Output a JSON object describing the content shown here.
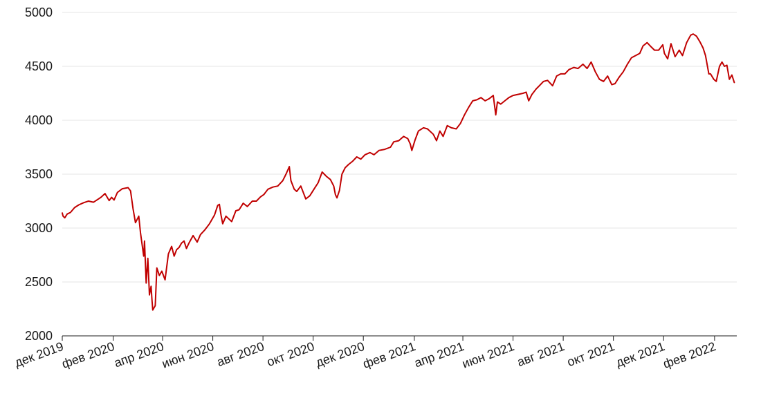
{
  "chart_data": {
    "type": "line",
    "title": "",
    "xlabel": "",
    "ylabel": "",
    "ylim": [
      2000,
      5000
    ],
    "y_ticks": [
      2000,
      2500,
      3000,
      3500,
      4000,
      4500,
      5000
    ],
    "x_range": [
      "2019-12-01",
      "2022-02-28"
    ],
    "x_ticks": [
      {
        "date": "2019-12-01",
        "label": "дек 2019"
      },
      {
        "date": "2020-02-01",
        "label": "фев 2020"
      },
      {
        "date": "2020-04-01",
        "label": "апр 2020"
      },
      {
        "date": "2020-06-01",
        "label": "июн 2020"
      },
      {
        "date": "2020-08-01",
        "label": "авг 2020"
      },
      {
        "date": "2020-10-01",
        "label": "окт 2020"
      },
      {
        "date": "2020-12-01",
        "label": "дек 2020"
      },
      {
        "date": "2021-02-01",
        "label": "фев 2021"
      },
      {
        "date": "2021-04-01",
        "label": "апр 2021"
      },
      {
        "date": "2021-06-01",
        "label": "июн 2021"
      },
      {
        "date": "2021-08-01",
        "label": "авг 2021"
      },
      {
        "date": "2021-10-01",
        "label": "окт 2021"
      },
      {
        "date": "2021-12-01",
        "label": "дек 2021"
      },
      {
        "date": "2022-02-01",
        "label": "фев 2022"
      }
    ],
    "grid": true,
    "legend": "none",
    "series": [
      {
        "color": "#c00000",
        "x": [
          "2019-12-01",
          "2019-12-02",
          "2019-12-04",
          "2019-12-07",
          "2019-12-11",
          "2019-12-16",
          "2019-12-21",
          "2019-12-27",
          "2020-01-02",
          "2020-01-08",
          "2020-01-13",
          "2020-01-17",
          "2020-01-22",
          "2020-01-27",
          "2020-01-30",
          "2020-02-02",
          "2020-02-06",
          "2020-02-12",
          "2020-02-19",
          "2020-02-22",
          "2020-02-25",
          "2020-02-28",
          "2020-03-03",
          "2020-03-05",
          "2020-03-09",
          "2020-03-10",
          "2020-03-12",
          "2020-03-14",
          "2020-03-16",
          "2020-03-18",
          "2020-03-19",
          "2020-03-20",
          "2020-03-23",
          "2020-03-25",
          "2020-03-28",
          "2020-03-31",
          "2020-04-04",
          "2020-04-08",
          "2020-04-12",
          "2020-04-15",
          "2020-04-18",
          "2020-04-21",
          "2020-04-24",
          "2020-04-27",
          "2020-04-30",
          "2020-05-03",
          "2020-05-08",
          "2020-05-13",
          "2020-05-17",
          "2020-05-22",
          "2020-05-28",
          "2020-06-03",
          "2020-06-07",
          "2020-06-09",
          "2020-06-11",
          "2020-06-13",
          "2020-06-17",
          "2020-06-24",
          "2020-06-29",
          "2020-07-03",
          "2020-07-08",
          "2020-07-13",
          "2020-07-19",
          "2020-07-24",
          "2020-07-29",
          "2020-08-02",
          "2020-08-07",
          "2020-08-13",
          "2020-08-19",
          "2020-08-25",
          "2020-08-29",
          "2020-09-02",
          "2020-09-04",
          "2020-09-08",
          "2020-09-11",
          "2020-09-16",
          "2020-09-22",
          "2020-09-27",
          "2020-10-02",
          "2020-10-07",
          "2020-10-12",
          "2020-10-17",
          "2020-10-22",
          "2020-10-26",
          "2020-10-28",
          "2020-10-30",
          "2020-11-02",
          "2020-11-05",
          "2020-11-09",
          "2020-11-13",
          "2020-11-18",
          "2020-11-23",
          "2020-11-28",
          "2020-12-03",
          "2020-12-09",
          "2020-12-14",
          "2020-12-20",
          "2020-12-27",
          "2021-01-03",
          "2021-01-07",
          "2021-01-13",
          "2021-01-19",
          "2021-01-24",
          "2021-01-27",
          "2021-01-29",
          "2021-02-02",
          "2021-02-06",
          "2021-02-12",
          "2021-02-17",
          "2021-02-24",
          "2021-02-28",
          "2021-03-04",
          "2021-03-08",
          "2021-03-13",
          "2021-03-18",
          "2021-03-24",
          "2021-03-29",
          "2021-04-03",
          "2021-04-08",
          "2021-04-13",
          "2021-04-18",
          "2021-04-23",
          "2021-04-28",
          "2021-05-03",
          "2021-05-08",
          "2021-05-11",
          "2021-05-13",
          "2021-05-17",
          "2021-05-22",
          "2021-05-27",
          "2021-06-01",
          "2021-06-07",
          "2021-06-13",
          "2021-06-17",
          "2021-06-20",
          "2021-06-24",
          "2021-06-29",
          "2021-07-03",
          "2021-07-08",
          "2021-07-13",
          "2021-07-19",
          "2021-07-24",
          "2021-07-29",
          "2021-08-03",
          "2021-08-08",
          "2021-08-14",
          "2021-08-19",
          "2021-08-25",
          "2021-08-30",
          "2021-09-04",
          "2021-09-09",
          "2021-09-14",
          "2021-09-19",
          "2021-09-24",
          "2021-09-29",
          "2021-10-03",
          "2021-10-08",
          "2021-10-13",
          "2021-10-18",
          "2021-10-23",
          "2021-10-28",
          "2021-11-02",
          "2021-11-06",
          "2021-11-11",
          "2021-11-16",
          "2021-11-20",
          "2021-11-25",
          "2021-11-30",
          "2021-12-02",
          "2021-12-06",
          "2021-12-10",
          "2021-12-15",
          "2021-12-20",
          "2021-12-24",
          "2021-12-29",
          "2022-01-03",
          "2022-01-06",
          "2022-01-10",
          "2022-01-14",
          "2022-01-18",
          "2022-01-21",
          "2022-01-25",
          "2022-01-27",
          "2022-01-31",
          "2022-02-03",
          "2022-02-07",
          "2022-02-10",
          "2022-02-13",
          "2022-02-16",
          "2022-02-19",
          "2022-02-22",
          "2022-02-25"
        ],
        "y": [
          3140,
          3110,
          3095,
          3130,
          3145,
          3190,
          3215,
          3235,
          3250,
          3240,
          3265,
          3285,
          3320,
          3255,
          3285,
          3260,
          3330,
          3365,
          3375,
          3345,
          3180,
          3050,
          3110,
          2960,
          2740,
          2880,
          2490,
          2720,
          2380,
          2460,
          2340,
          2240,
          2280,
          2630,
          2560,
          2600,
          2520,
          2760,
          2830,
          2740,
          2800,
          2820,
          2860,
          2880,
          2810,
          2860,
          2930,
          2870,
          2940,
          2980,
          3040,
          3120,
          3210,
          3220,
          3120,
          3040,
          3110,
          3060,
          3160,
          3170,
          3230,
          3200,
          3250,
          3250,
          3290,
          3310,
          3360,
          3380,
          3390,
          3440,
          3500,
          3570,
          3440,
          3360,
          3340,
          3390,
          3270,
          3300,
          3360,
          3420,
          3520,
          3480,
          3450,
          3390,
          3310,
          3280,
          3350,
          3500,
          3560,
          3590,
          3620,
          3660,
          3640,
          3680,
          3700,
          3680,
          3720,
          3730,
          3750,
          3800,
          3810,
          3850,
          3830,
          3780,
          3720,
          3820,
          3900,
          3930,
          3920,
          3870,
          3810,
          3900,
          3850,
          3950,
          3930,
          3920,
          3970,
          4050,
          4120,
          4180,
          4190,
          4210,
          4180,
          4200,
          4230,
          4050,
          4170,
          4150,
          4180,
          4210,
          4230,
          4240,
          4250,
          4260,
          4180,
          4240,
          4290,
          4320,
          4360,
          4370,
          4320,
          4410,
          4430,
          4430,
          4470,
          4490,
          4480,
          4520,
          4480,
          4540,
          4450,
          4380,
          4360,
          4410,
          4330,
          4340,
          4400,
          4450,
          4520,
          4580,
          4600,
          4620,
          4690,
          4720,
          4680,
          4650,
          4650,
          4700,
          4620,
          4570,
          4710,
          4590,
          4650,
          4600,
          4720,
          4790,
          4800,
          4780,
          4730,
          4670,
          4600,
          4430,
          4430,
          4380,
          4360,
          4500,
          4540,
          4500,
          4510,
          4380,
          4420,
          4350
        ]
      }
    ]
  }
}
